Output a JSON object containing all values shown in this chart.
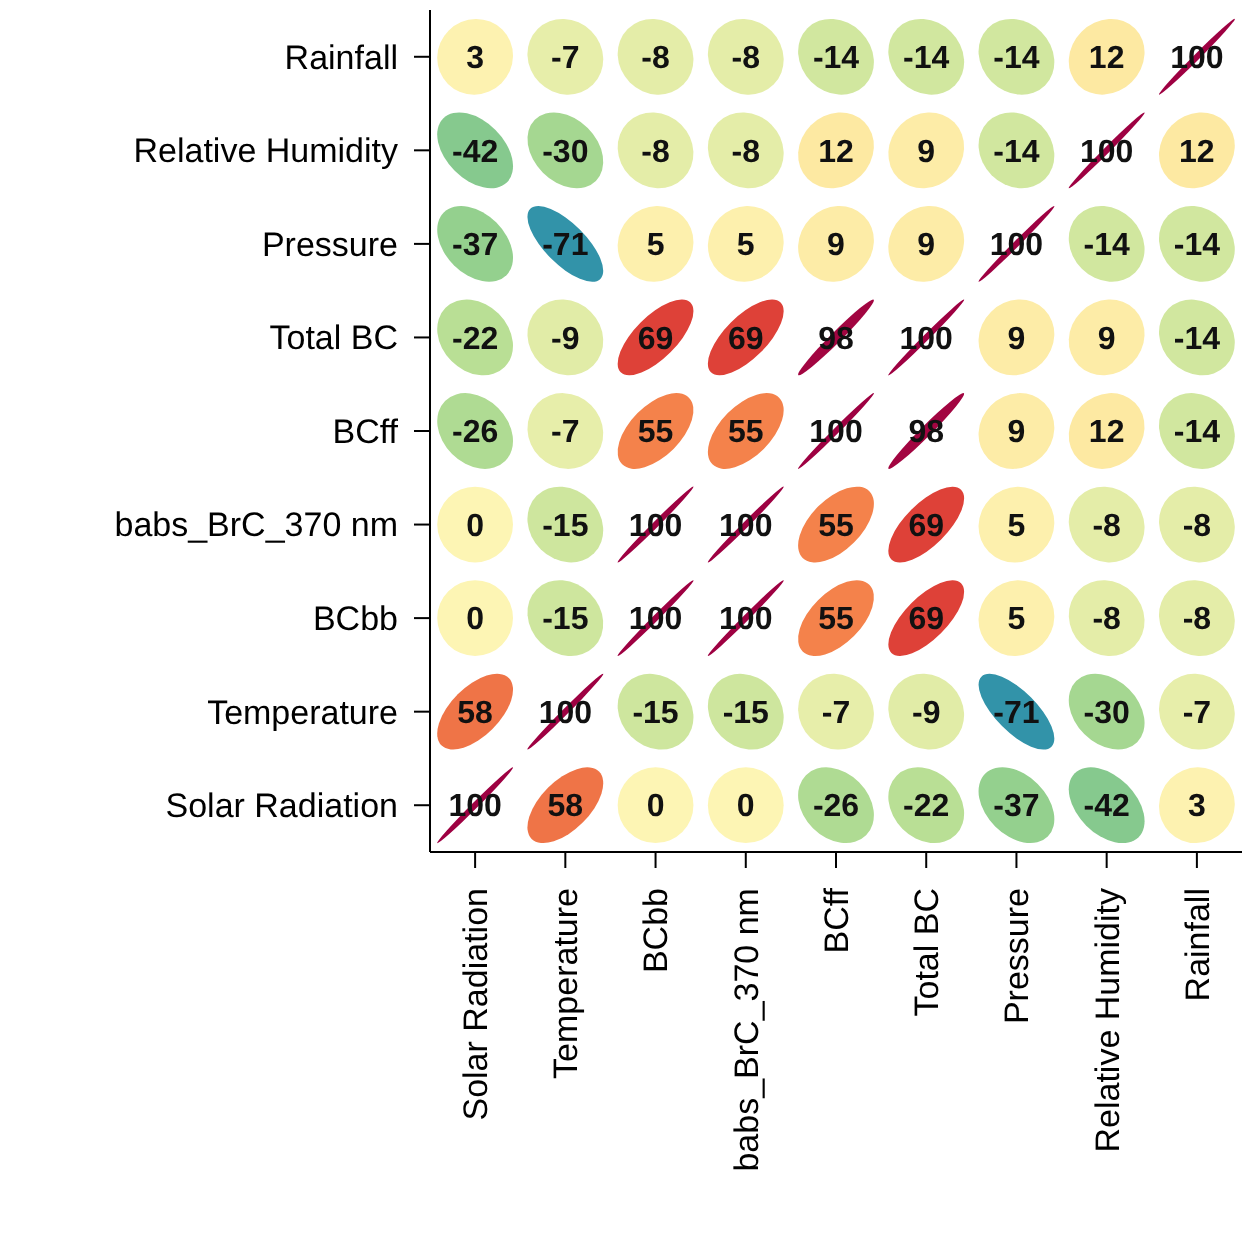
{
  "chart_data": {
    "type": "heatmap",
    "categories": [
      "Solar Radiation",
      "Temperature",
      "BCbb",
      "babs_BrC_370 nm",
      "BCff",
      "Total BC",
      "Pressure",
      "Relative Humidity",
      "Rainfall"
    ],
    "y_categories": [
      "Rainfall",
      "Relative Humidity",
      "Pressure",
      "Total BC",
      "BCff",
      "babs_BrC_370 nm",
      "BCbb",
      "Temperature",
      "Solar Radiation"
    ],
    "cells": [
      [
        3,
        -7,
        -8,
        -8,
        -14,
        -14,
        -14,
        12,
        100
      ],
      [
        -42,
        -30,
        -8,
        -8,
        12,
        9,
        -14,
        100,
        12
      ],
      [
        -37,
        -71,
        5,
        5,
        9,
        9,
        100,
        -14,
        -14
      ],
      [
        -22,
        -9,
        69,
        69,
        98,
        100,
        9,
        9,
        -14
      ],
      [
        -26,
        -7,
        55,
        55,
        100,
        98,
        9,
        12,
        -14
      ],
      [
        0,
        -15,
        100,
        100,
        55,
        69,
        5,
        -8,
        -8
      ],
      [
        0,
        -15,
        100,
        100,
        55,
        69,
        5,
        -8,
        -8
      ],
      [
        58,
        100,
        -15,
        -15,
        -7,
        -9,
        -71,
        -30,
        -7
      ],
      [
        100,
        58,
        0,
        0,
        -26,
        -22,
        -37,
        -42,
        3
      ]
    ],
    "data_labels": true
  }
}
